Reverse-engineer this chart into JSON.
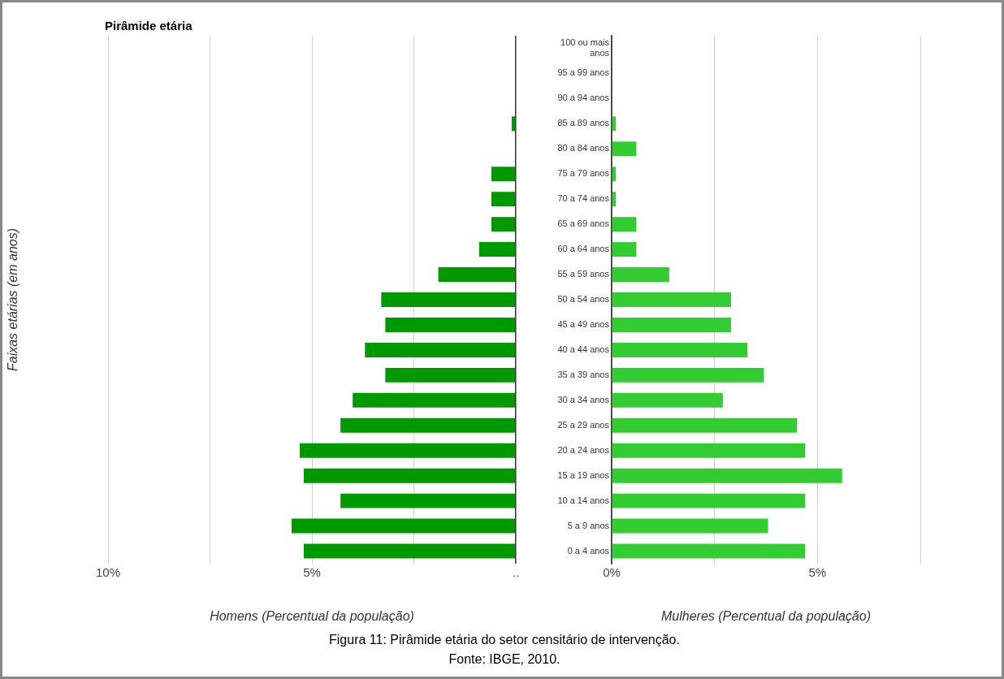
{
  "chart_data": [
    {
      "type": "bar",
      "orientation": "horizontal",
      "title": "Pirâmide etária",
      "ylabel": "Faixas etárias (em anos)",
      "xlabel": "Homens (Percentual da população)",
      "tick_labels": "x",
      "grid": "x",
      "categories": [
        null,
        null,
        null,
        null,
        null,
        null,
        null,
        null,
        null,
        null,
        null,
        null,
        null,
        null,
        null,
        null,
        null,
        null,
        null,
        null,
        null
      ],
      "values": [
        0,
        0,
        0,
        0.1,
        0,
        0.6,
        0.6,
        0.6,
        0.9,
        1.9,
        3.3,
        3.2,
        3.7,
        3.2,
        4.0,
        4.3,
        5.3,
        5.2,
        4.3,
        5.5,
        5.2
      ],
      "color": "#009900",
      "xlim": [
        10,
        0
      ],
      "xticks": [
        {
          "value": 10,
          "label": "10%"
        },
        {
          "value": 7.5,
          "label": null
        },
        {
          "value": 5,
          "label": "5%"
        },
        {
          "value": 2.5,
          "label": null
        },
        {
          "value": 0,
          "label": ".."
        }
      ]
    },
    {
      "type": "bar",
      "orientation": "horizontal",
      "xlabel": "Mulheres (Percentual da população)",
      "grid": "x",
      "categories": [
        "100 ou mais anos",
        "95 a 99 anos",
        "90 a 94 anos",
        "85 a 89 anos",
        "80 a 84 anos",
        "75 a 79 anos",
        "70 a 74 anos",
        "65 a 69 anos",
        "60 a 64 anos",
        "55 a 59 anos",
        "50 a 54 anos",
        "45 a 49 anos",
        "40 a 44 anos",
        "35 a 39 anos",
        "30 a 34 anos",
        "25 a 29 anos",
        "20 a 24 anos",
        "15 a 19 anos",
        "10 a 14 anos",
        "5 a 9 anos",
        "0 a 4 anos"
      ],
      "values": [
        0,
        0,
        0,
        0.1,
        0.6,
        0.1,
        0.1,
        0.6,
        0.6,
        1.4,
        2.9,
        2.9,
        3.3,
        3.7,
        2.7,
        4.5,
        4.7,
        5.6,
        4.7,
        3.8,
        4.7
      ],
      "color": "#33cc33",
      "xlim": [
        0,
        7.5
      ],
      "xticks": [
        {
          "value": 0,
          "label": "0%"
        },
        {
          "value": 2.5,
          "label": null
        },
        {
          "value": 5,
          "label": "5%"
        },
        {
          "value": 7.5,
          "label": null
        }
      ],
      "annotations": [
        "Figura 11: Pirâmide etária do setor censitário de intervenção.",
        "Fonte: IBGE, 2010."
      ]
    }
  ]
}
